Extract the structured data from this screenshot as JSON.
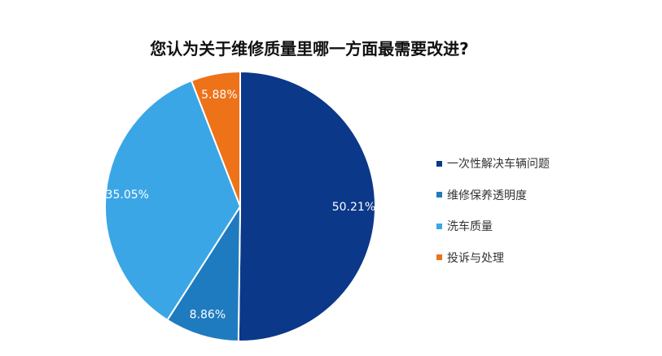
{
  "chart_data": {
    "type": "pie",
    "title": "您认为关于维修质量里哪一方面最需要改进?",
    "legend_position": "right",
    "series": [
      {
        "name": "一次性解决车辆问题",
        "value": 50.21,
        "label": "50.21%",
        "color": "#0b3888"
      },
      {
        "name": "维修保养透明度",
        "value": 8.86,
        "label": "8.86%",
        "color": "#1f7bbf"
      },
      {
        "name": "洗车质量",
        "value": 35.05,
        "label": "35.05%",
        "color": "#3ba6e6"
      },
      {
        "name": "投诉与处理",
        "value": 5.88,
        "label": "5.88%",
        "color": "#ee7218"
      }
    ]
  }
}
